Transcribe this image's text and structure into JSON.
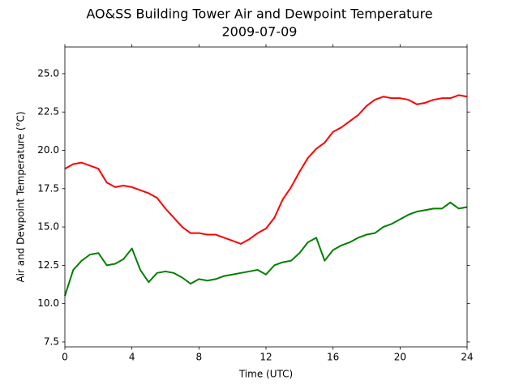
{
  "chart_data": {
    "type": "line",
    "title": "AO&SS Building Tower Air and Dewpoint Temperature",
    "subtitle": "2009-07-09",
    "xlabel": "Time (UTC)",
    "ylabel": "Air and Dewpoint Temperature (°C)",
    "x": [
      0,
      0.5,
      1,
      1.5,
      2,
      2.5,
      3,
      3.5,
      4,
      4.5,
      5,
      5.5,
      6,
      6.5,
      7,
      7.5,
      8,
      8.5,
      9,
      9.5,
      10,
      10.5,
      11,
      11.5,
      12,
      12.5,
      13,
      13.5,
      14,
      14.5,
      15,
      15.5,
      16,
      16.5,
      17,
      17.5,
      18,
      18.5,
      19,
      19.5,
      20,
      20.5,
      21,
      21.5,
      22,
      22.5,
      23,
      23.5,
      24
    ],
    "series": [
      {
        "color": "#ff0000",
        "values": [
          18.8,
          19.1,
          19.2,
          19.0,
          18.8,
          17.9,
          17.6,
          17.7,
          17.6,
          17.4,
          17.2,
          16.9,
          16.2,
          15.6,
          15.0,
          14.6,
          14.6,
          14.5,
          14.5,
          14.3,
          14.1,
          13.9,
          14.2,
          14.6,
          14.9,
          15.6,
          16.8,
          17.6,
          18.6,
          19.5,
          20.1,
          20.5,
          21.2,
          21.5,
          21.9,
          22.3,
          22.9,
          23.3,
          23.5,
          23.4,
          23.4,
          23.3,
          23.0,
          23.1,
          23.3,
          23.4,
          23.4,
          23.6,
          23.5
        ]
      },
      {
        "color": "#008000",
        "values": [
          10.5,
          12.2,
          12.8,
          13.2,
          13.3,
          12.5,
          12.6,
          12.9,
          13.6,
          12.2,
          11.4,
          12.0,
          12.1,
          12.0,
          11.7,
          11.3,
          11.6,
          11.5,
          11.6,
          11.8,
          11.9,
          12.0,
          12.1,
          12.2,
          11.9,
          12.5,
          12.7,
          12.8,
          13.3,
          14.0,
          14.3,
          12.8,
          13.5,
          13.8,
          14.0,
          14.3,
          14.5,
          14.6,
          15.0,
          15.2,
          15.5,
          15.8,
          16.0,
          16.1,
          16.2,
          16.2,
          16.6,
          16.2,
          16.3
        ]
      }
    ],
    "xlim": [
      0,
      24
    ],
    "xticks": [
      0,
      4,
      8,
      12,
      16,
      20,
      24
    ],
    "ylim": [
      7.18,
      26.74
    ],
    "yticks": [
      {
        "value": 7.5,
        "label": "7.5"
      },
      {
        "value": 10,
        "label": "10.0"
      },
      {
        "value": 12.5,
        "label": "12.5"
      },
      {
        "value": 15,
        "label": "15.0"
      },
      {
        "value": 17.5,
        "label": "17.5"
      },
      {
        "value": 20,
        "label": "20.0"
      },
      {
        "value": 22.5,
        "label": "22.5"
      },
      {
        "value": 25,
        "label": "25.0"
      }
    ],
    "grid": false
  }
}
